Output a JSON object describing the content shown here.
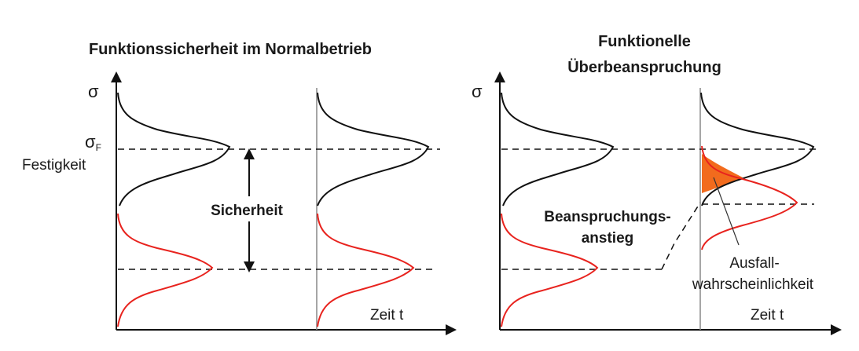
{
  "left": {
    "title": "Funktionssicherheit im Normalbetrieb",
    "y_symbol": "σ",
    "sigma_f": "σ",
    "sigma_f_sub": "F",
    "strength_label": "Festigkeit",
    "safety_label": "Sicherheit",
    "x_label": "Zeit t"
  },
  "right": {
    "title_line1": "Funktionelle",
    "title_line2": "Überbeanspruchung",
    "y_symbol": "σ",
    "increase_line1": "Beanspruchungs-",
    "increase_line2": "anstieg",
    "failure_line1": "Ausfall-",
    "failure_line2": "wahrscheinlichkeit",
    "x_label": "Zeit t"
  },
  "colors": {
    "strength": "#111111",
    "stress": "#e8231e",
    "failure_area": "#f26b1d"
  }
}
